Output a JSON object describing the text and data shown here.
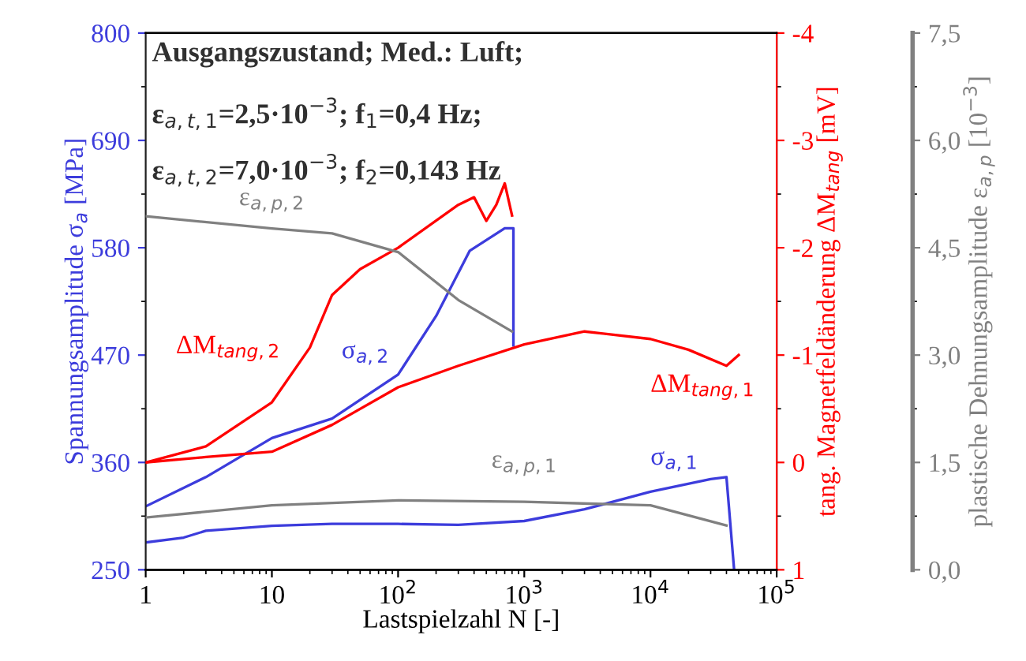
{
  "chart_data": {
    "type": "line",
    "log": "x",
    "xlabel": "Lastspielzahl N [-]",
    "ylabel": "Spannungsamplitude σ$_{a}$ [MPa]",
    "y2label": "tang. Magnetfeldänderung ΔM$_{tang}$ [mV]",
    "y3label": "plastische Dehnungsamplitude ε$_{a,p}$ [10$^{−3}$]",
    "annotations": [
      "Ausgangszustand; Med.: Luft;",
      "ε$_{a,t,1}$=2,5·10$^{−3}$; f$_{1}$=0,4 Hz;",
      "ε$_{a,t,2}$=7,0·10$^{−3}$; f$_{2}$=0,143 Hz"
    ],
    "xlim": [
      1,
      100000
    ],
    "xticks": [
      1,
      10,
      {
        "value": 100,
        "label": "10$^{2}$"
      },
      {
        "value": 1000,
        "label": "10$^{3}$"
      },
      {
        "value": 10000,
        "label": "10$^{4}$"
      },
      {
        "value": 100000,
        "label": "10$^{5}$"
      }
    ],
    "ylim": [
      250,
      800
    ],
    "yticks": [
      250,
      360,
      470,
      580,
      690,
      800
    ],
    "y2lim": [
      1,
      -4
    ],
    "y2ticks": [
      {
        "value": 1,
        "label": "1"
      },
      {
        "value": 0,
        "label": "0"
      },
      {
        "value": -1,
        "label": "-1"
      },
      {
        "value": -2,
        "label": "-2"
      },
      {
        "value": -3,
        "label": "-3"
      },
      {
        "value": -4,
        "label": "-4"
      }
    ],
    "y3lim": [
      0,
      7.5
    ],
    "y3ticks": [
      {
        "value": 0,
        "label": "0,0"
      },
      {
        "value": 1.5,
        "label": "1,5"
      },
      {
        "value": 3,
        "label": "3,0"
      },
      {
        "value": 4.5,
        "label": "4,5"
      },
      {
        "value": 6,
        "label": "6,0"
      },
      {
        "value": 7.5,
        "label": "7,5"
      }
    ],
    "grid": false,
    "legend": false,
    "marker": "none",
    "line_style": "solid",
    "series": [
      {
        "name": "σ$_{a,1}$",
        "color": "#3c3cdc",
        "axis": "y",
        "x": [
          1,
          2,
          3,
          10,
          30,
          100,
          300,
          1000,
          3000,
          10000,
          30000,
          40000,
          46000
        ],
        "values": [
          278,
          283,
          290,
          295,
          297,
          297,
          296,
          300,
          312,
          330,
          343,
          345,
          250
        ]
      },
      {
        "name": "σ$_{a,2}$",
        "color": "#3c3cdc",
        "axis": "y",
        "x": [
          1,
          3,
          10,
          30,
          100,
          200,
          370,
          700,
          820,
          820
        ],
        "values": [
          315,
          345,
          385,
          405,
          450,
          510,
          577,
          600,
          600,
          480
        ]
      },
      {
        "name": "ΔM$_{tang,1}$",
        "color": "#ff0000",
        "axis": "y2",
        "x": [
          1,
          3,
          10,
          30,
          100,
          300,
          1000,
          3000,
          10000,
          20000,
          40000,
          50000
        ],
        "values": [
          0,
          -0.05,
          -0.1,
          -0.35,
          -0.7,
          -0.9,
          -1.1,
          -1.22,
          -1.15,
          -1.05,
          -0.9,
          -1.0
        ]
      },
      {
        "name": "ΔM$_{tang,2}$",
        "color": "#ff0000",
        "axis": "y2",
        "x": [
          1,
          3,
          10,
          20,
          30,
          50,
          100,
          300,
          400,
          500,
          600,
          700,
          800
        ],
        "values": [
          0,
          -0.15,
          -0.56,
          -1.07,
          -1.56,
          -1.8,
          -2.0,
          -2.4,
          -2.47,
          -2.25,
          -2.4,
          -2.6,
          -2.3
        ]
      },
      {
        "name": "ε$_{a,p,1}$",
        "color": "#808080",
        "axis": "y3",
        "x": [
          1,
          10,
          100,
          1000,
          10000,
          40000
        ],
        "values": [
          0.73,
          0.9,
          0.97,
          0.95,
          0.9,
          0.62
        ]
      },
      {
        "name": "ε$_{a,p,2}$",
        "color": "#808080",
        "axis": "y3",
        "x": [
          1,
          10,
          30,
          100,
          300,
          800
        ],
        "values": [
          4.94,
          4.77,
          4.7,
          4.44,
          3.77,
          3.33
        ]
      }
    ]
  }
}
